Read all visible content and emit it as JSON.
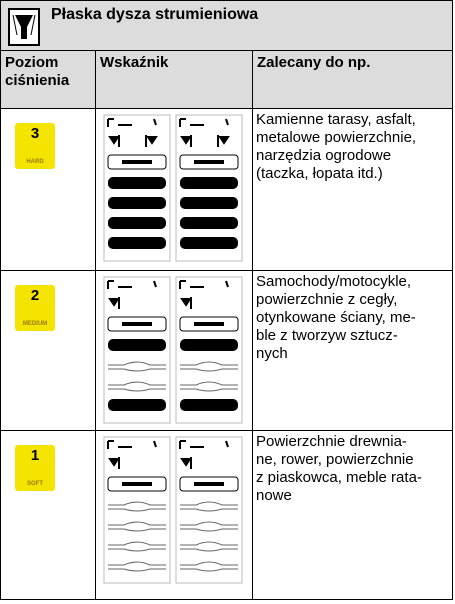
{
  "header": {
    "title": "Płaska dysza strumieniowa"
  },
  "table": {
    "columns": [
      [
        "Poziom",
        "ciśnienia"
      ],
      [
        "Wskaźnik"
      ],
      [
        "Zalecany do np."
      ]
    ],
    "rows": [
      {
        "level": "3",
        "level_label": "HARD",
        "text": [
          "Kamienne tarasy, asfalt,",
          "metalowe powierzchnie,",
          "narzędzia ogrodowe",
          "(taczka, łopata itd.)"
        ]
      },
      {
        "level": "2",
        "level_label": "MEDIUM",
        "text": [
          "Samochody/motocykle,",
          "powierzchnie z cegły,",
          "otynkowane ściany, me-",
          "ble z tworzyw sztucz-",
          "nych"
        ]
      },
      {
        "level": "1",
        "level_label": "SOFT",
        "text": [
          "Powierzchnie drewnia-",
          "ne, rower, powierzchnie",
          "z piaskowca, meble rata-",
          "nowe"
        ]
      }
    ]
  }
}
